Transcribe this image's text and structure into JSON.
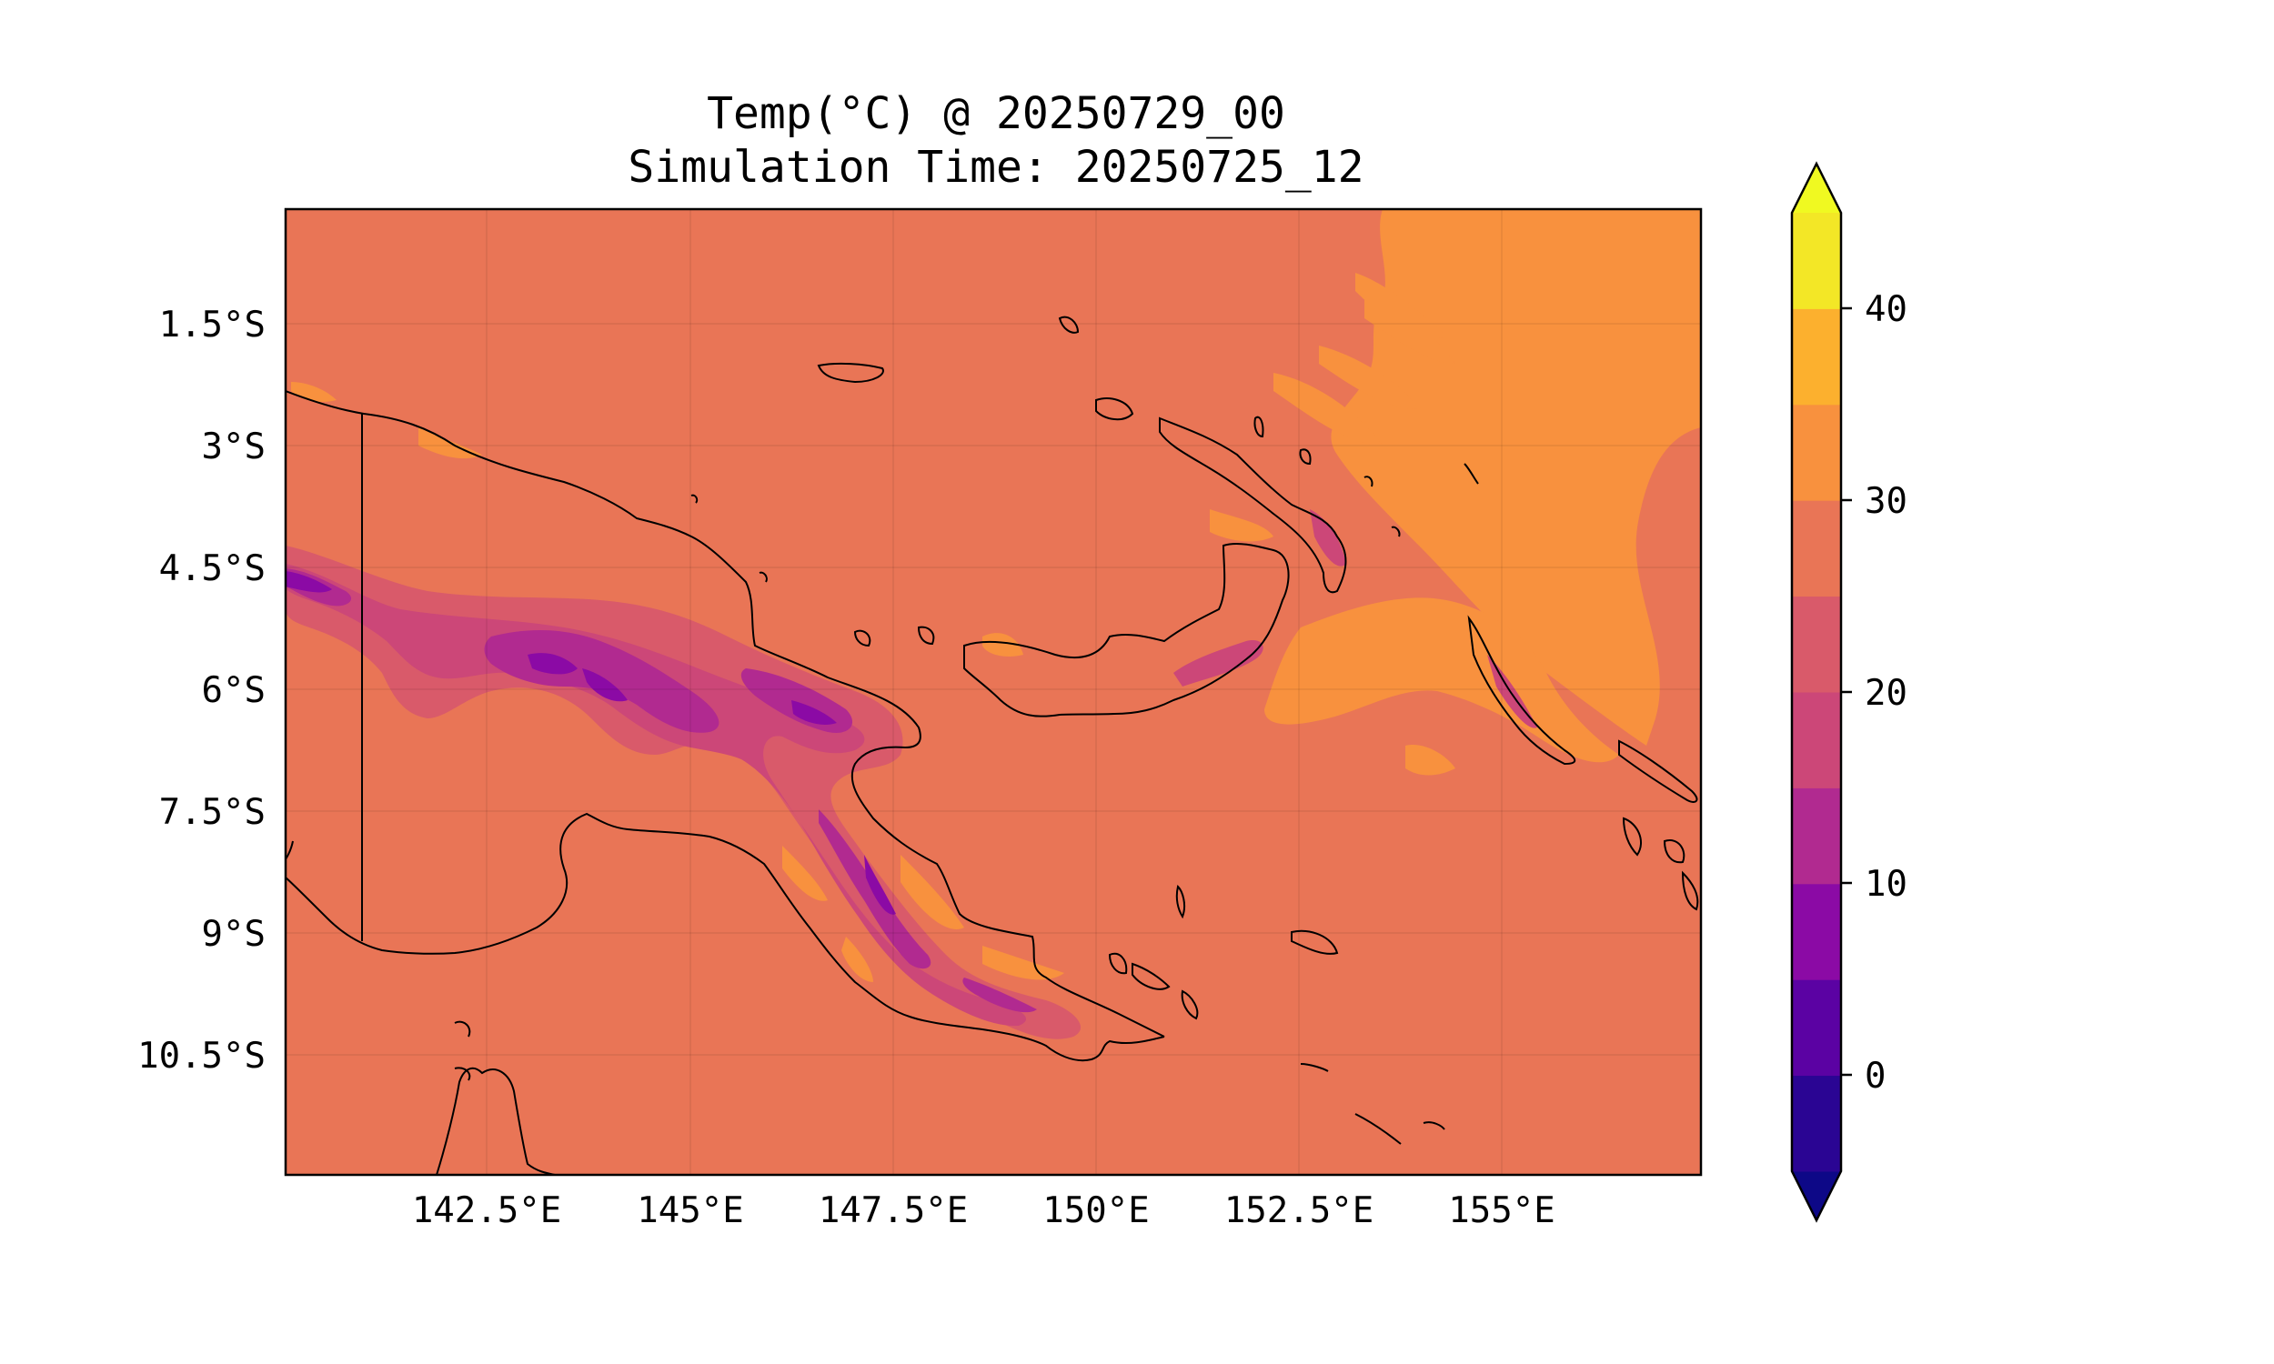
{
  "title": {
    "line1": "Temp(°C) @ 20250729_00",
    "line2": "Simulation Time: 20250725_12"
  },
  "map": {
    "region": "New Guinea / Papua New Guinea",
    "x_ticks": [
      "142.5°E",
      "145°E",
      "147.5°E",
      "150°E",
      "152.5°E",
      "155°E"
    ],
    "y_ticks": [
      "1.5°S",
      "3°S",
      "4.5°S",
      "6°S",
      "7.5°S",
      "9°S",
      "10.5°S"
    ],
    "background_color": "#e97556",
    "gridlines": true
  },
  "colorbar": {
    "ticks": [
      "0",
      "10",
      "20",
      "30",
      "40"
    ],
    "colors": [
      "#0d0887",
      "#2a0593",
      "#5b02a3",
      "#8b0aa5",
      "#b12a90",
      "#cc4778",
      "#d95a6a",
      "#e97556",
      "#f8913e",
      "#fcb02e",
      "#f3e726",
      "#f0f921"
    ],
    "extend": "both"
  }
}
